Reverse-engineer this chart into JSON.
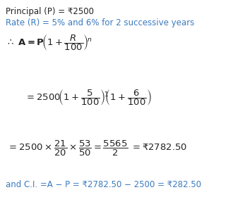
{
  "bg_color": "#ffffff",
  "text_color_black": "#222222",
  "text_color_blue": "#3a7abf",
  "line1": "Principal (P) = ₹2500",
  "line2": "Rate (R) = 5% and 6% for 2 successive years",
  "last_line": "and C.I. =A − P = ₹2782.50 − 2500 = ₹282.50",
  "fs_small": 8.5,
  "fs_math": 9.5
}
